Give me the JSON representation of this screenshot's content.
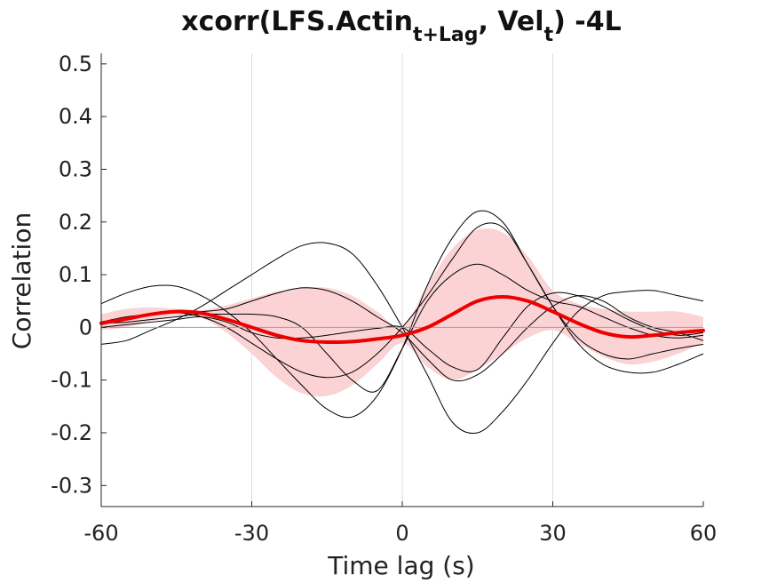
{
  "chart_data": {
    "type": "line",
    "title": {
      "prefix": "xcorr(LFS.Actin",
      "sub1": "t+Lag",
      "middle": ", Vel",
      "sub2": "t",
      "suffix": ") -4L"
    },
    "xlabel": "Time lag (s)",
    "ylabel": "Correlation",
    "xlim": [
      -60,
      60
    ],
    "ylim": [
      -0.34,
      0.52
    ],
    "xticks": [
      -60,
      -30,
      0,
      30,
      60
    ],
    "xtick_labels": [
      "-60",
      "-30",
      "0",
      "30",
      "60"
    ],
    "yticks": [
      -0.3,
      -0.2,
      -0.1,
      0,
      0.1,
      0.2,
      0.3,
      0.4,
      0.5
    ],
    "ytick_labels": [
      "-0.3",
      "-0.2",
      "-0.1",
      "0",
      "0.1",
      "0.2",
      "0.3",
      "0.4",
      "0.5"
    ],
    "grid": "vertical",
    "x": [
      -60,
      -55,
      -50,
      -45,
      -40,
      -35,
      -30,
      -25,
      -20,
      -15,
      -10,
      -5,
      0,
      5,
      10,
      15,
      20,
      25,
      30,
      35,
      40,
      45,
      50,
      55,
      60
    ],
    "mean": {
      "color": "#ee0000",
      "values": [
        0.008,
        0.016,
        0.025,
        0.03,
        0.027,
        0.015,
        0.0,
        -0.015,
        -0.025,
        -0.028,
        -0.027,
        -0.022,
        -0.015,
        0.0,
        0.025,
        0.05,
        0.058,
        0.05,
        0.03,
        0.008,
        -0.01,
        -0.018,
        -0.015,
        -0.01,
        -0.006
      ]
    },
    "band": {
      "color": "#fbd3d5",
      "upper": [
        0.025,
        0.035,
        0.038,
        0.035,
        0.033,
        0.042,
        0.055,
        0.068,
        0.075,
        0.075,
        0.06,
        0.03,
        0.0,
        0.08,
        0.15,
        0.185,
        0.18,
        0.135,
        0.07,
        0.045,
        0.035,
        0.03,
        0.03,
        0.03,
        0.02
      ],
      "lower": [
        -0.005,
        0.0,
        0.012,
        0.022,
        0.018,
        -0.01,
        -0.05,
        -0.095,
        -0.125,
        -0.13,
        -0.11,
        -0.07,
        -0.03,
        -0.075,
        -0.1,
        -0.08,
        -0.05,
        -0.02,
        -0.005,
        -0.03,
        -0.055,
        -0.07,
        -0.065,
        -0.05,
        -0.03
      ]
    },
    "traces": {
      "color": "#000000",
      "series": [
        [
          0.045,
          0.065,
          0.078,
          0.078,
          0.06,
          0.03,
          -0.01,
          -0.06,
          -0.11,
          -0.155,
          -0.17,
          -0.13,
          -0.04,
          0.08,
          0.17,
          0.22,
          0.2,
          0.12,
          0.04,
          -0.02,
          -0.05,
          -0.06,
          -0.05,
          -0.04,
          -0.032
        ],
        [
          -0.032,
          -0.025,
          -0.005,
          0.015,
          0.04,
          0.07,
          0.1,
          0.13,
          0.155,
          0.16,
          0.14,
          0.08,
          0.0,
          -0.09,
          -0.18,
          -0.2,
          -0.16,
          -0.1,
          -0.03,
          0.03,
          0.06,
          0.068,
          0.07,
          0.06,
          0.05
        ],
        [
          0.005,
          0.015,
          0.025,
          0.028,
          0.02,
          0.0,
          -0.03,
          -0.06,
          -0.085,
          -0.095,
          -0.085,
          -0.05,
          0.0,
          0.06,
          0.13,
          0.19,
          0.19,
          0.12,
          0.04,
          -0.03,
          -0.07,
          -0.085,
          -0.085,
          -0.07,
          -0.05
        ],
        [
          0.01,
          0.02,
          0.025,
          0.028,
          0.03,
          0.035,
          0.05,
          0.065,
          0.075,
          0.07,
          0.05,
          0.02,
          -0.01,
          -0.06,
          -0.1,
          -0.09,
          -0.05,
          0.0,
          0.04,
          0.06,
          0.05,
          0.02,
          0.0,
          -0.01,
          -0.025
        ],
        [
          0.008,
          0.01,
          0.015,
          0.02,
          0.025,
          0.025,
          0.025,
          0.02,
          0.0,
          -0.05,
          -0.1,
          -0.12,
          -0.04,
          0.05,
          0.1,
          0.12,
          0.1,
          0.07,
          0.05,
          0.04,
          0.02,
          0.0,
          -0.015,
          -0.02,
          -0.015
        ],
        [
          0.0,
          0.005,
          0.01,
          0.015,
          0.02,
          0.01,
          -0.01,
          -0.02,
          -0.02,
          -0.015,
          -0.008,
          -0.002,
          0.0,
          -0.04,
          -0.075,
          -0.08,
          -0.02,
          0.04,
          0.065,
          0.06,
          0.04,
          0.015,
          -0.005,
          -0.015,
          -0.01
        ]
      ]
    }
  }
}
